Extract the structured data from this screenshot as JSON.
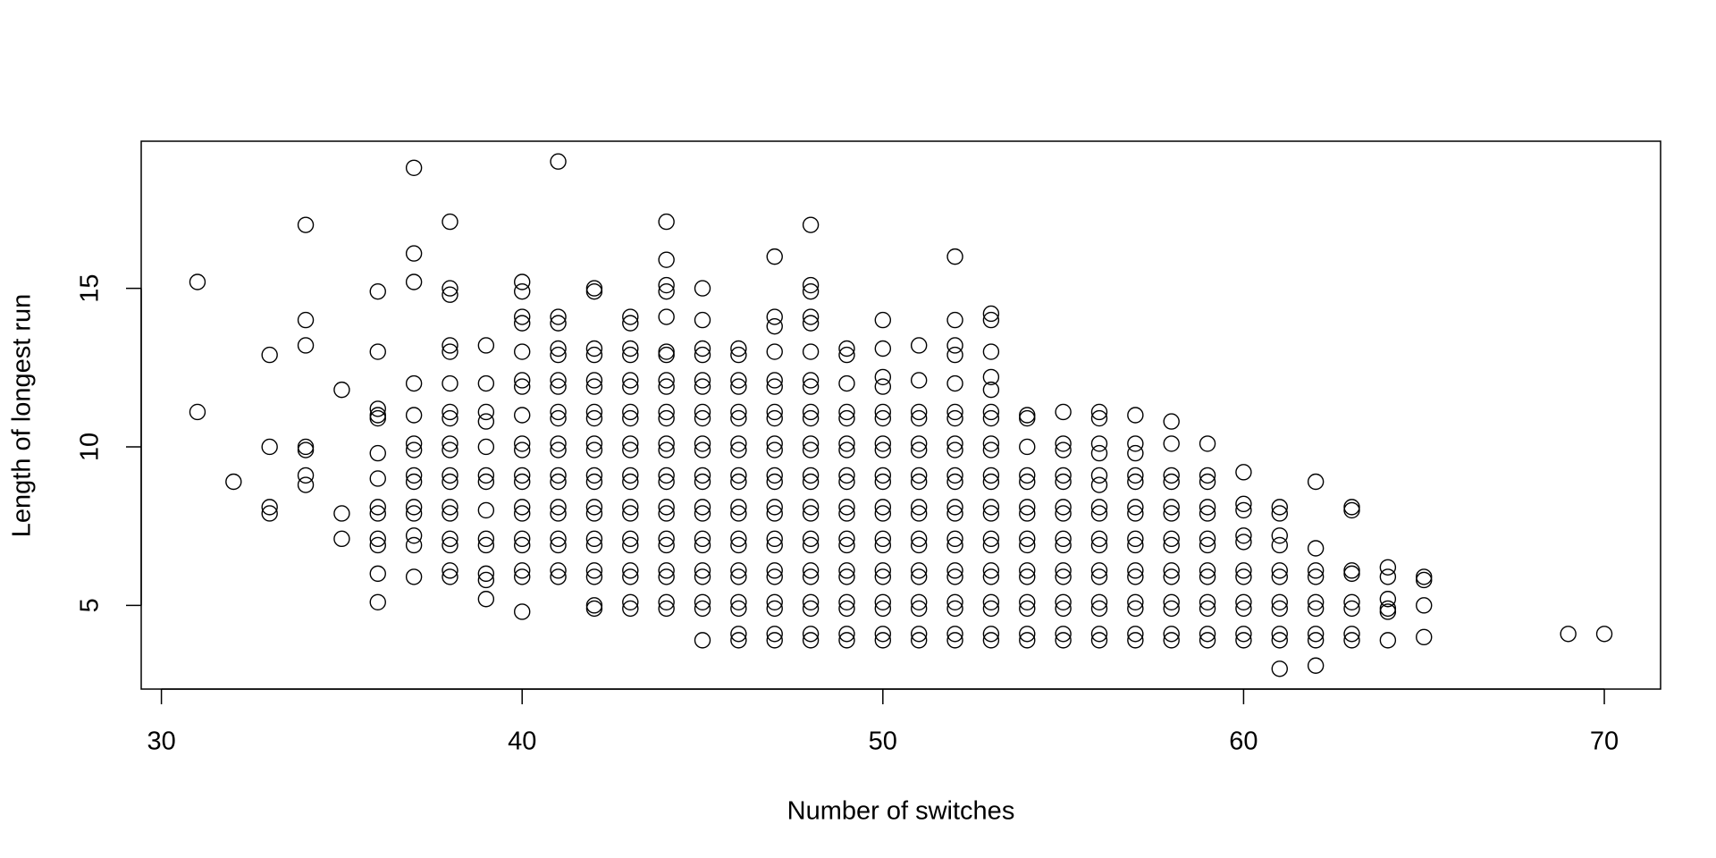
{
  "chart_data": {
    "type": "scatter",
    "x_label": "Number of switches",
    "y_label": "Length of longest run",
    "color": "#000000",
    "xlim": [
      29.44,
      71.56
    ],
    "ylim": [
      2.36,
      19.64
    ],
    "xticks": [
      30,
      40,
      50,
      60,
      70
    ],
    "yticks": [
      5,
      10,
      15
    ],
    "x": [
      31,
      31,
      32,
      33,
      33,
      33,
      33,
      34,
      34,
      34,
      34,
      34,
      34,
      34,
      35,
      35,
      35,
      36,
      36,
      36,
      36,
      36,
      36,
      36,
      36,
      36,
      36,
      36,
      36,
      36,
      37,
      37,
      37,
      37,
      37,
      37,
      37,
      37,
      37,
      37,
      37,
      37,
      37,
      37,
      38,
      38,
      38,
      38,
      38,
      38,
      38,
      38,
      38,
      38,
      38,
      38,
      38,
      38,
      38,
      38,
      38,
      38,
      39,
      39,
      39,
      39,
      39,
      39,
      39,
      39,
      39,
      39,
      39,
      39,
      39,
      40,
      40,
      40,
      40,
      40,
      40,
      40,
      40,
      40,
      40,
      40,
      40,
      40,
      40,
      40,
      40,
      40,
      40,
      40,
      41,
      41,
      41,
      41,
      41,
      41,
      41,
      41,
      41,
      41,
      41,
      41,
      41,
      41,
      41,
      41,
      41,
      41,
      41,
      42,
      42,
      42,
      42,
      42,
      42,
      42,
      42,
      42,
      42,
      42,
      42,
      42,
      42,
      42,
      42,
      42,
      42,
      42,
      42,
      43,
      43,
      43,
      43,
      43,
      43,
      43,
      43,
      43,
      43,
      43,
      43,
      43,
      43,
      43,
      43,
      43,
      43,
      43,
      43,
      44,
      44,
      44,
      44,
      44,
      44,
      44,
      44,
      44,
      44,
      44,
      44,
      44,
      44,
      44,
      44,
      44,
      44,
      44,
      44,
      44,
      44,
      44,
      45,
      45,
      45,
      45,
      45,
      45,
      45,
      45,
      45,
      45,
      45,
      45,
      45,
      45,
      45,
      45,
      45,
      45,
      45,
      45,
      45,
      46,
      46,
      46,
      46,
      46,
      46,
      46,
      46,
      46,
      46,
      46,
      46,
      46,
      46,
      46,
      46,
      46,
      46,
      46,
      46,
      47,
      47,
      47,
      47,
      47,
      47,
      47,
      47,
      47,
      47,
      47,
      47,
      47,
      47,
      47,
      47,
      47,
      47,
      47,
      47,
      47,
      47,
      48,
      48,
      48,
      48,
      48,
      48,
      48,
      48,
      48,
      48,
      48,
      48,
      48,
      48,
      48,
      48,
      48,
      48,
      48,
      48,
      48,
      48,
      48,
      48,
      49,
      49,
      49,
      49,
      49,
      49,
      49,
      49,
      49,
      49,
      49,
      49,
      49,
      49,
      49,
      49,
      49,
      49,
      49,
      50,
      50,
      50,
      50,
      50,
      50,
      50,
      50,
      50,
      50,
      50,
      50,
      50,
      50,
      50,
      50,
      50,
      50,
      50,
      50,
      51,
      51,
      51,
      51,
      51,
      51,
      51,
      51,
      51,
      51,
      51,
      51,
      51,
      51,
      51,
      51,
      51,
      51,
      52,
      52,
      52,
      52,
      52,
      52,
      52,
      52,
      52,
      52,
      52,
      52,
      52,
      52,
      52,
      52,
      52,
      52,
      52,
      52,
      52,
      53,
      53,
      53,
      53,
      53,
      53,
      53,
      53,
      53,
      53,
      53,
      53,
      53,
      53,
      53,
      53,
      53,
      53,
      53,
      53,
      53,
      54,
      54,
      54,
      54,
      54,
      54,
      54,
      54,
      54,
      54,
      54,
      54,
      54,
      54,
      54,
      55,
      55,
      55,
      55,
      55,
      55,
      55,
      55,
      55,
      55,
      55,
      55,
      55,
      55,
      55,
      56,
      56,
      56,
      56,
      56,
      56,
      56,
      56,
      56,
      56,
      56,
      56,
      56,
      56,
      56,
      56,
      57,
      57,
      57,
      57,
      57,
      57,
      57,
      57,
      57,
      57,
      57,
      57,
      57,
      57,
      57,
      58,
      58,
      58,
      58,
      58,
      58,
      58,
      58,
      58,
      58,
      58,
      58,
      58,
      58,
      59,
      59,
      59,
      59,
      59,
      59,
      59,
      59,
      59,
      59,
      59,
      59,
      59,
      60,
      60,
      60,
      60,
      60,
      60,
      60,
      60,
      60,
      60,
      60,
      61,
      61,
      61,
      61,
      61,
      61,
      61,
      61,
      61,
      61,
      61,
      62,
      62,
      62,
      62,
      62,
      62,
      62,
      62,
      62,
      63,
      63,
      63,
      63,
      63,
      63,
      63,
      63,
      64,
      64,
      64,
      64,
      64,
      64,
      65,
      65,
      65,
      65,
      69,
      70
    ],
    "y": [
      15.2,
      11.1,
      8.9,
      12.9,
      10.0,
      8.1,
      7.9,
      17.0,
      14.0,
      13.2,
      10.0,
      9.9,
      9.1,
      8.8,
      11.8,
      7.9,
      7.1,
      14.9,
      13.0,
      11.2,
      11.0,
      10.9,
      9.8,
      9.0,
      8.1,
      7.9,
      7.1,
      6.9,
      6.0,
      5.1,
      18.8,
      16.1,
      15.2,
      12.0,
      11.0,
      10.1,
      9.9,
      9.1,
      8.9,
      8.1,
      7.9,
      7.2,
      6.9,
      5.9,
      17.1,
      15.0,
      14.8,
      13.2,
      13.0,
      12.0,
      11.1,
      10.9,
      10.1,
      9.9,
      9.1,
      8.9,
      8.1,
      7.9,
      7.1,
      6.9,
      6.1,
      5.9,
      13.2,
      12.0,
      11.1,
      10.8,
      10.0,
      9.1,
      8.9,
      8.0,
      7.1,
      6.9,
      6.0,
      5.8,
      5.2,
      15.2,
      14.9,
      14.1,
      13.9,
      13.0,
      12.1,
      11.9,
      11.0,
      10.1,
      9.9,
      9.1,
      8.9,
      8.1,
      7.9,
      7.1,
      6.9,
      6.1,
      5.9,
      4.8,
      19.0,
      14.1,
      13.9,
      13.1,
      12.9,
      12.1,
      11.9,
      11.1,
      10.9,
      10.1,
      9.9,
      9.1,
      8.9,
      8.1,
      7.9,
      7.1,
      6.9,
      6.1,
      5.9,
      15.0,
      14.9,
      13.1,
      12.9,
      12.1,
      11.9,
      11.1,
      10.9,
      10.1,
      9.9,
      9.1,
      8.9,
      8.1,
      7.9,
      7.1,
      6.9,
      6.1,
      5.9,
      5.0,
      4.9,
      14.1,
      13.9,
      13.1,
      12.9,
      12.1,
      11.9,
      11.1,
      10.9,
      10.1,
      9.9,
      9.1,
      8.9,
      8.1,
      7.9,
      7.1,
      6.9,
      6.1,
      5.9,
      5.1,
      4.9,
      17.1,
      15.9,
      15.1,
      14.9,
      14.1,
      13.0,
      12.9,
      12.1,
      11.9,
      11.1,
      10.9,
      10.1,
      9.9,
      9.1,
      8.9,
      8.1,
      7.9,
      7.1,
      6.9,
      6.1,
      5.9,
      5.1,
      4.9,
      15.0,
      14.0,
      13.1,
      12.9,
      12.1,
      11.9,
      11.1,
      10.9,
      10.1,
      9.9,
      9.1,
      8.9,
      8.1,
      7.9,
      7.1,
      6.9,
      6.1,
      5.9,
      5.1,
      4.9,
      3.9,
      13.1,
      12.9,
      12.1,
      11.9,
      11.1,
      10.9,
      10.1,
      9.9,
      9.1,
      8.9,
      8.1,
      7.9,
      7.1,
      6.9,
      6.1,
      5.9,
      5.1,
      4.9,
      4.1,
      3.9,
      16.0,
      14.1,
      13.8,
      13.0,
      12.1,
      11.9,
      11.1,
      10.9,
      10.1,
      9.9,
      9.1,
      8.9,
      8.1,
      7.9,
      7.1,
      6.9,
      6.1,
      5.9,
      5.1,
      4.9,
      4.1,
      3.9,
      17.0,
      15.1,
      14.9,
      14.1,
      13.9,
      13.0,
      12.1,
      11.9,
      11.1,
      10.9,
      10.1,
      9.9,
      9.1,
      8.9,
      8.1,
      7.9,
      7.1,
      6.9,
      6.1,
      5.9,
      5.1,
      4.9,
      4.1,
      3.9,
      13.1,
      12.9,
      12.0,
      11.1,
      10.9,
      10.1,
      9.9,
      9.1,
      8.9,
      8.1,
      7.9,
      7.1,
      6.9,
      6.1,
      5.9,
      5.1,
      4.9,
      4.1,
      3.9,
      14.0,
      13.1,
      12.2,
      11.9,
      11.1,
      10.9,
      10.1,
      9.9,
      9.1,
      8.9,
      8.1,
      7.9,
      7.1,
      6.9,
      6.1,
      5.9,
      5.1,
      4.9,
      4.1,
      3.9,
      13.2,
      12.1,
      11.1,
      10.9,
      10.1,
      9.9,
      9.1,
      8.9,
      8.1,
      7.9,
      7.1,
      6.9,
      6.1,
      5.9,
      5.1,
      4.9,
      4.1,
      3.9,
      16.0,
      14.0,
      13.2,
      12.9,
      12.0,
      11.1,
      10.9,
      10.1,
      9.9,
      9.1,
      8.9,
      8.1,
      7.9,
      7.1,
      6.9,
      6.1,
      5.9,
      5.1,
      4.9,
      4.1,
      3.9,
      14.2,
      14.0,
      13.0,
      12.2,
      11.8,
      11.1,
      10.9,
      10.1,
      9.9,
      9.1,
      8.9,
      8.1,
      7.9,
      7.1,
      6.9,
      6.1,
      5.9,
      5.1,
      4.9,
      4.1,
      3.9,
      11.0,
      10.9,
      10.0,
      9.1,
      8.9,
      8.1,
      7.9,
      7.1,
      6.9,
      6.1,
      5.9,
      5.1,
      4.9,
      4.1,
      3.9,
      11.1,
      10.1,
      9.9,
      9.1,
      8.9,
      8.1,
      7.9,
      7.1,
      6.9,
      6.1,
      5.9,
      5.1,
      4.9,
      4.1,
      3.9,
      11.1,
      10.9,
      10.1,
      9.8,
      9.1,
      8.8,
      8.1,
      7.9,
      7.1,
      6.9,
      6.1,
      5.9,
      5.1,
      4.9,
      4.1,
      3.9,
      11.0,
      10.1,
      9.8,
      9.1,
      8.9,
      8.1,
      7.9,
      7.1,
      6.9,
      6.1,
      5.9,
      5.1,
      4.9,
      4.1,
      3.9,
      10.8,
      10.1,
      9.1,
      8.9,
      8.1,
      7.9,
      7.1,
      6.9,
      6.1,
      5.9,
      5.1,
      4.9,
      4.1,
      3.9,
      10.1,
      9.1,
      8.9,
      8.1,
      7.9,
      7.1,
      6.9,
      6.1,
      5.9,
      5.1,
      4.9,
      4.1,
      3.9,
      9.2,
      8.2,
      8.0,
      7.2,
      7.0,
      6.1,
      5.9,
      5.1,
      4.9,
      4.1,
      3.9,
      8.1,
      7.9,
      7.2,
      6.9,
      6.1,
      5.9,
      5.1,
      4.9,
      4.1,
      3.9,
      3.0,
      8.9,
      6.8,
      6.1,
      5.9,
      5.1,
      4.9,
      4.1,
      3.9,
      3.1,
      8.1,
      8.0,
      6.1,
      6.0,
      5.1,
      4.9,
      4.1,
      3.9,
      6.2,
      5.9,
      5.2,
      4.9,
      4.8,
      3.9,
      5.9,
      5.8,
      5.0,
      4.0,
      4.1,
      4.1
    ]
  }
}
